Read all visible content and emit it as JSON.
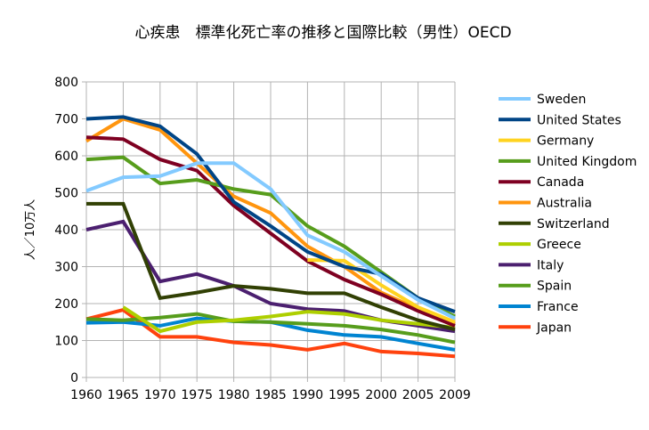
{
  "chart_data": {
    "type": "line",
    "title": "心疾患　標準化死亡率の推移と国際比較（男性）OECD",
    "ylabel": "人／10万人",
    "xlabel": "",
    "ylim": [
      0,
      800
    ],
    "yticks": [
      0,
      100,
      200,
      300,
      400,
      500,
      600,
      700,
      800
    ],
    "grid": true,
    "legend_position": "right",
    "categories": [
      "1960",
      "1965",
      "1970",
      "1975",
      "1980",
      "1985",
      "1990",
      "1995",
      "2000",
      "2005",
      "2009"
    ],
    "series": [
      {
        "name": "Sweden",
        "color": "#83caff",
        "values": [
          505,
          542,
          545,
          580,
          580,
          510,
          385,
          340,
          275,
          210,
          160
        ]
      },
      {
        "name": "United States",
        "color": "#004586",
        "values": [
          700,
          705,
          680,
          605,
          475,
          410,
          340,
          300,
          280,
          215,
          178
        ]
      },
      {
        "name": "Germany",
        "color": "#ffd320",
        "values": [
          null,
          null,
          null,
          null,
          null,
          null,
          318,
          316,
          250,
          190,
          150
        ]
      },
      {
        "name": "United Kingdom",
        "color": "#579d1c",
        "values": [
          590,
          596,
          525,
          535,
          510,
          495,
          410,
          355,
          285,
          215,
          165
        ]
      },
      {
        "name": "Canada",
        "color": "#7e0021",
        "values": [
          650,
          645,
          590,
          560,
          465,
          390,
          315,
          265,
          225,
          180,
          140
        ]
      },
      {
        "name": "Australia",
        "color": "#ff950e",
        "values": [
          640,
          700,
          670,
          580,
          490,
          445,
          355,
          300,
          230,
          185,
          145
        ]
      },
      {
        "name": "Switzerland",
        "color": "#314004",
        "values": [
          470,
          470,
          215,
          230,
          248,
          240,
          228,
          228,
          190,
          155,
          130
        ]
      },
      {
        "name": "Greece",
        "color": "#aecf00",
        "values": [
          null,
          190,
          125,
          150,
          155,
          165,
          178,
          172,
          155,
          145,
          135
        ]
      },
      {
        "name": "Italy",
        "color": "#4b1f6f",
        "values": [
          400,
          422,
          260,
          280,
          248,
          200,
          185,
          180,
          155,
          140,
          125
        ]
      },
      {
        "name": "Spain",
        "color": "#579d1c",
        "values": [
          158,
          155,
          162,
          172,
          152,
          150,
          145,
          140,
          130,
          115,
          95
        ]
      },
      {
        "name": "France",
        "color": "#0084d1",
        "values": [
          148,
          150,
          140,
          160,
          152,
          150,
          128,
          115,
          110,
          92,
          75
        ]
      },
      {
        "name": "Japan",
        "color": "#ff420e",
        "values": [
          158,
          183,
          110,
          110,
          95,
          88,
          75,
          92,
          70,
          65,
          57
        ]
      }
    ]
  }
}
